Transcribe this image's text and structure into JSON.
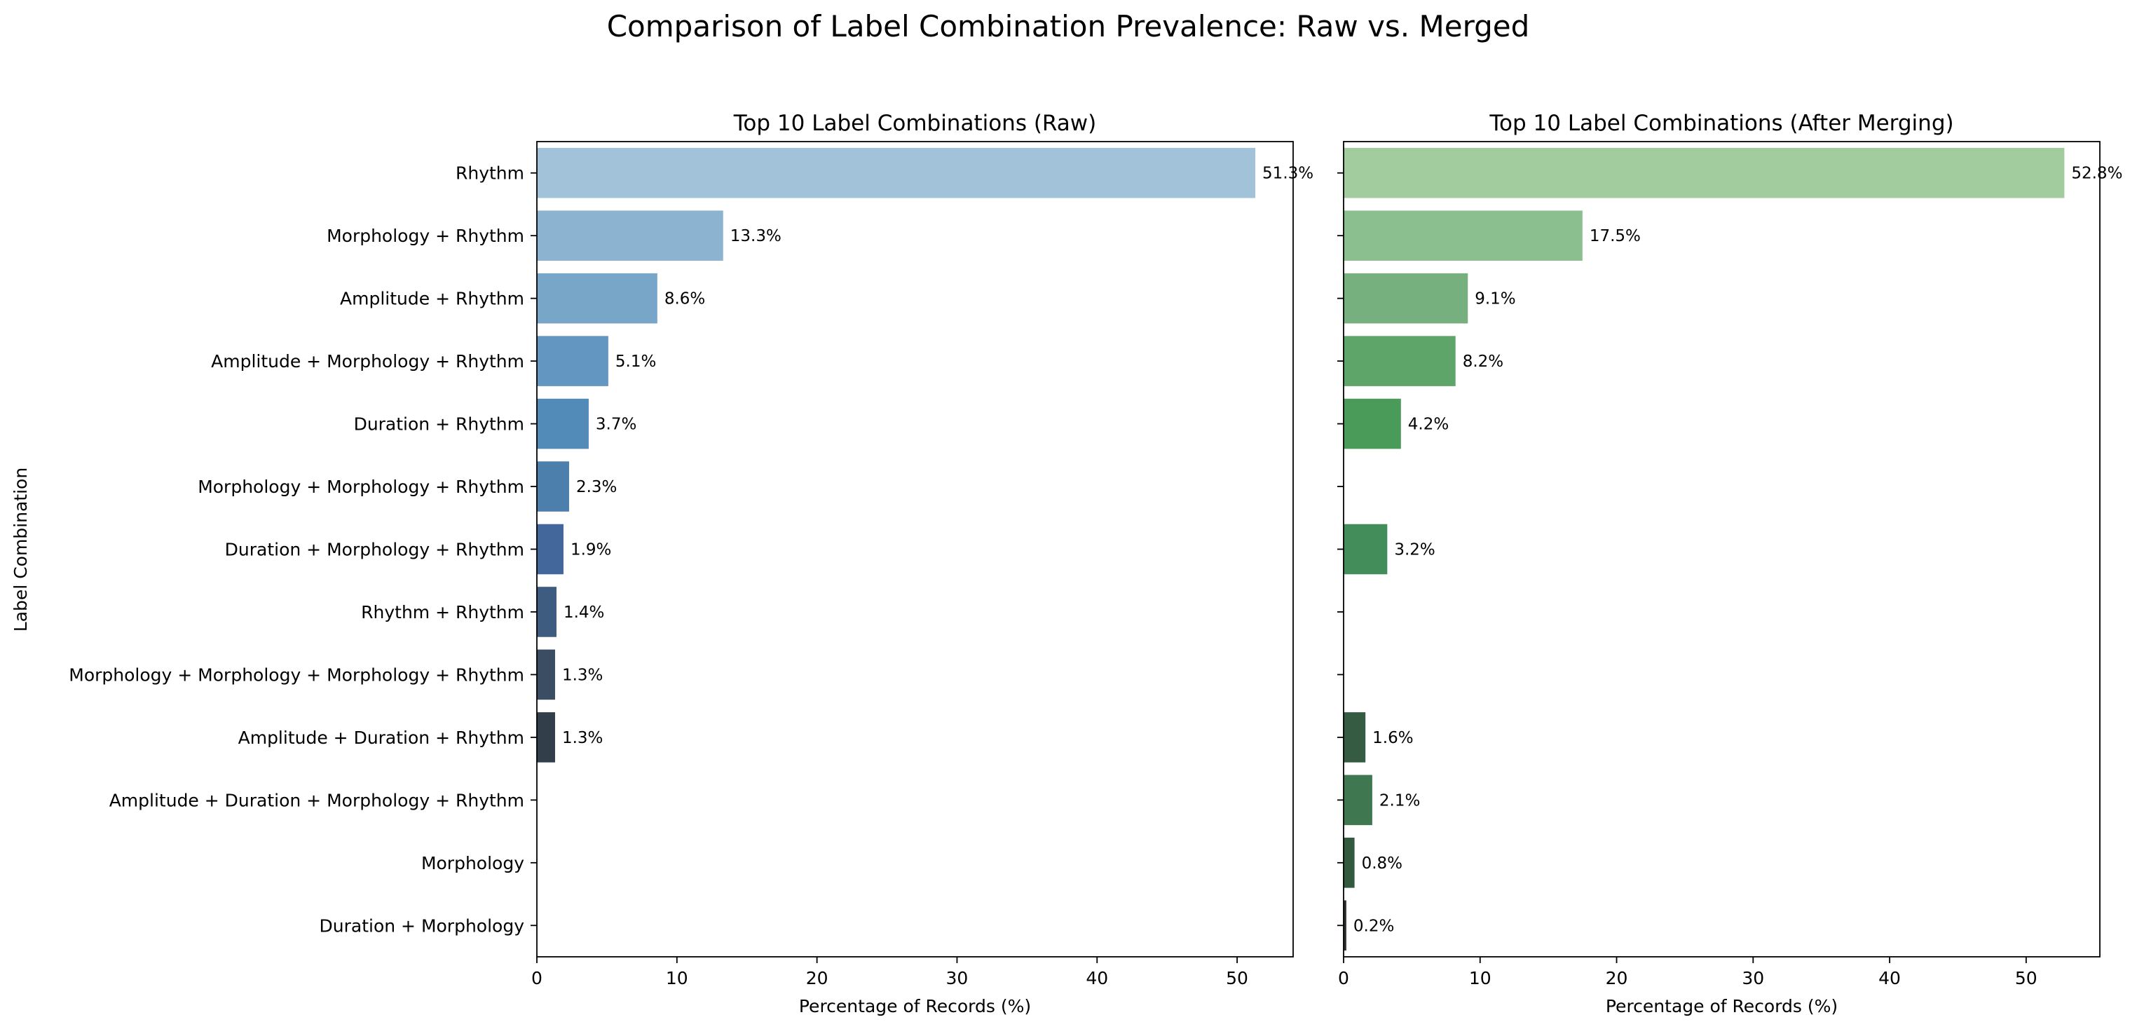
{
  "figure": {
    "suptitle": "Comparison of Label Combination Prevalence: Raw vs. Merged"
  },
  "chart_data": [
    {
      "type": "bar",
      "orientation": "horizontal",
      "title": "Top 10 Label Combinations (Raw)",
      "xlabel": "Percentage of Records (%)",
      "ylabel": "Label Combination",
      "xlim": [
        0,
        54
      ],
      "xticks": [
        0,
        10,
        20,
        30,
        40,
        50
      ],
      "grid": false,
      "categories": [
        "Rhythm",
        "Morphology + Rhythm",
        "Amplitude + Rhythm",
        "Amplitude + Morphology + Rhythm",
        "Duration + Rhythm",
        "Morphology + Morphology + Rhythm",
        "Duration + Morphology + Rhythm",
        "Rhythm + Rhythm",
        "Morphology + Morphology + Morphology + Rhythm",
        "Amplitude + Duration + Rhythm",
        "Amplitude + Duration + Morphology + Rhythm",
        "Morphology",
        "Duration + Morphology"
      ],
      "values": [
        51.3,
        13.3,
        8.6,
        5.1,
        3.7,
        2.3,
        1.9,
        1.4,
        1.3,
        1.3,
        null,
        null,
        null
      ],
      "data_labels": [
        "51.3%",
        "13.3%",
        "8.6%",
        "5.1%",
        "3.7%",
        "2.3%",
        "1.9%",
        "1.4%",
        "1.3%",
        "1.3%",
        "",
        "",
        ""
      ],
      "palette": "Blues_d",
      "colors": [
        "#a1c2d9",
        "#8cb3d0",
        "#77a6c8",
        "#6496c2",
        "#528bb8",
        "#4c7fac",
        "#43679a",
        "#3e5c80",
        "#3a4d62",
        "#323f4b"
      ]
    },
    {
      "type": "bar",
      "orientation": "horizontal",
      "title": "Top 10 Label Combinations (After Merging)",
      "xlabel": "Percentage of Records (%)",
      "ylabel": "",
      "xlim": [
        0,
        55.4
      ],
      "xticks": [
        0,
        10,
        20,
        30,
        40,
        50
      ],
      "grid": false,
      "categories": [
        "Rhythm",
        "Morphology + Rhythm",
        "Amplitude + Rhythm",
        "Amplitude + Morphology + Rhythm",
        "Duration + Rhythm",
        "Morphology + Morphology + Rhythm",
        "Duration + Morphology + Rhythm",
        "Rhythm + Rhythm",
        "Morphology + Morphology + Morphology + Rhythm",
        "Amplitude + Duration + Rhythm",
        "Amplitude + Duration + Morphology + Rhythm",
        "Morphology",
        "Duration + Morphology"
      ],
      "values": [
        52.8,
        17.5,
        9.1,
        8.2,
        4.2,
        null,
        3.2,
        null,
        null,
        1.6,
        2.1,
        0.8,
        0.2
      ],
      "data_labels": [
        "52.8%",
        "17.5%",
        "9.1%",
        "8.2%",
        "4.2%",
        "",
        "3.2%",
        "",
        "",
        "1.6%",
        "2.1%",
        "0.8%",
        "0.2%"
      ],
      "palette": "Greens_d",
      "colors": [
        "#a2cc9d",
        "#8bbf90",
        "#76b07e",
        "#5ea56a",
        "#4a9a5a",
        null,
        "#428d5a",
        null,
        null,
        "#365b43",
        "#3f7750",
        "#325a3d",
        "#2c332e"
      ]
    }
  ]
}
